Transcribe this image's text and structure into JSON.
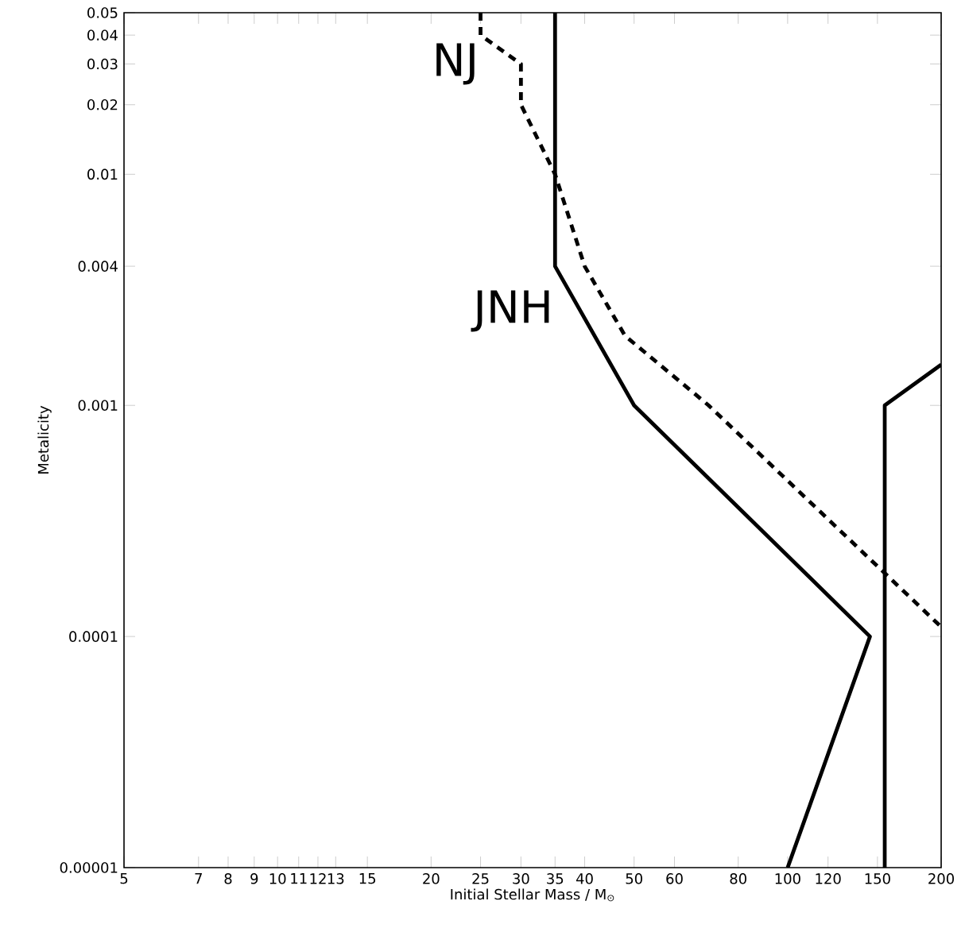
{
  "chart_data": {
    "type": "line",
    "xlabel": "Initial Stellar Mass / M$_{⊙}$",
    "ylabel": "Metalicity",
    "log": "xy",
    "xlim": [
      5,
      200
    ],
    "ylim": [
      1e-05,
      0.05
    ],
    "xticks": [
      5,
      7,
      8,
      9,
      10,
      11,
      12,
      13,
      15,
      20,
      25,
      30,
      35,
      40,
      50,
      60,
      80,
      100,
      120,
      150,
      200
    ],
    "yticks": [
      {
        "value": 1e-05,
        "label": "0.00001"
      },
      {
        "value": 0.0001,
        "label": "0.0001"
      },
      0.001,
      0.004,
      0.01,
      0.02,
      0.03,
      0.04,
      0.05
    ],
    "marker": "none",
    "series": [
      {
        "name": "NJ",
        "color": "#000000",
        "line_style": "dashed",
        "x": [
          25,
          25,
          30,
          30,
          35,
          40,
          48,
          70,
          200
        ],
        "values": [
          0.05,
          0.04,
          0.03,
          0.02,
          0.01,
          0.004,
          0.002,
          0.001,
          0.00011
        ]
      },
      {
        "name": "JNH",
        "color": "#000000",
        "line_style": "solid",
        "x": [
          35,
          35,
          50,
          145,
          100
        ],
        "values": [
          0.05,
          0.004,
          0.001,
          0.0001,
          1e-05
        ]
      },
      {
        "color": "#000000",
        "line_style": "solid",
        "x": [
          155,
          155,
          200
        ],
        "values": [
          1e-05,
          0.001,
          0.0015
        ]
      }
    ]
  }
}
